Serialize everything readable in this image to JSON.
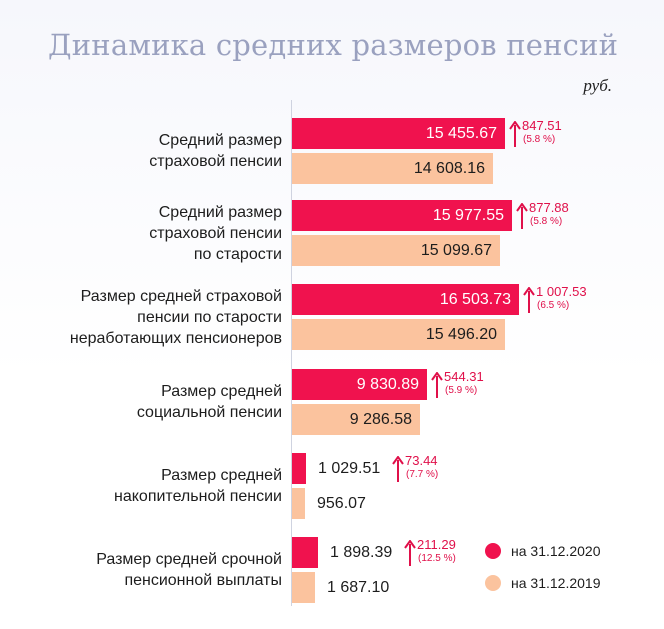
{
  "chart_data": {
    "type": "bar",
    "orientation": "horizontal",
    "title": "Динамика средних размеров пенсий",
    "unit": "руб.",
    "categories": [
      [
        "Средний размер",
        "страховой пенсии"
      ],
      [
        "Средний размер",
        "страховой пенсии",
        "по старости"
      ],
      [
        "Размер средней страховой",
        "пенсии по старости",
        "неработающих пенсионеров"
      ],
      [
        "Размер средней",
        "социальной пенсии"
      ],
      [
        "Размер средней",
        "накопительной пенсии"
      ],
      [
        "Размер средней срочной",
        "пенсионной выплаты"
      ]
    ],
    "series": [
      {
        "name": "на 31.12.2020",
        "color": "#f0124e",
        "values": [
          15455.67,
          15977.55,
          16503.73,
          9830.89,
          1029.51,
          1898.39
        ],
        "labels": [
          "15 455.67",
          "15 977.55",
          "16 503.73",
          "9 830.89",
          "1 029.51",
          "1 898.39"
        ]
      },
      {
        "name": "на 31.12.2019",
        "color": "#fbc39e",
        "values": [
          14608.16,
          15099.67,
          15496.2,
          9286.58,
          956.07,
          1687.1
        ],
        "labels": [
          "14 608.16",
          "15 099.67",
          "15 496.20",
          "9 286.58",
          "956.07",
          "1 687.10"
        ]
      }
    ],
    "changes": [
      {
        "abs": "847.51",
        "pct": "(5.8 %)"
      },
      {
        "abs": "877.88",
        "pct": "(5.8 %)"
      },
      {
        "abs": "1 007.53",
        "pct": "(6.5 %)"
      },
      {
        "abs": "544.31",
        "pct": "(5.9 %)"
      },
      {
        "abs": "73.44",
        "pct": "(7.7 %)"
      },
      {
        "abs": "211.29",
        "pct": "(12.5 %)"
      }
    ],
    "change_color": "#e0104a",
    "xlim": [
      0,
      16503.73
    ],
    "legend_position": "bottom-right"
  }
}
